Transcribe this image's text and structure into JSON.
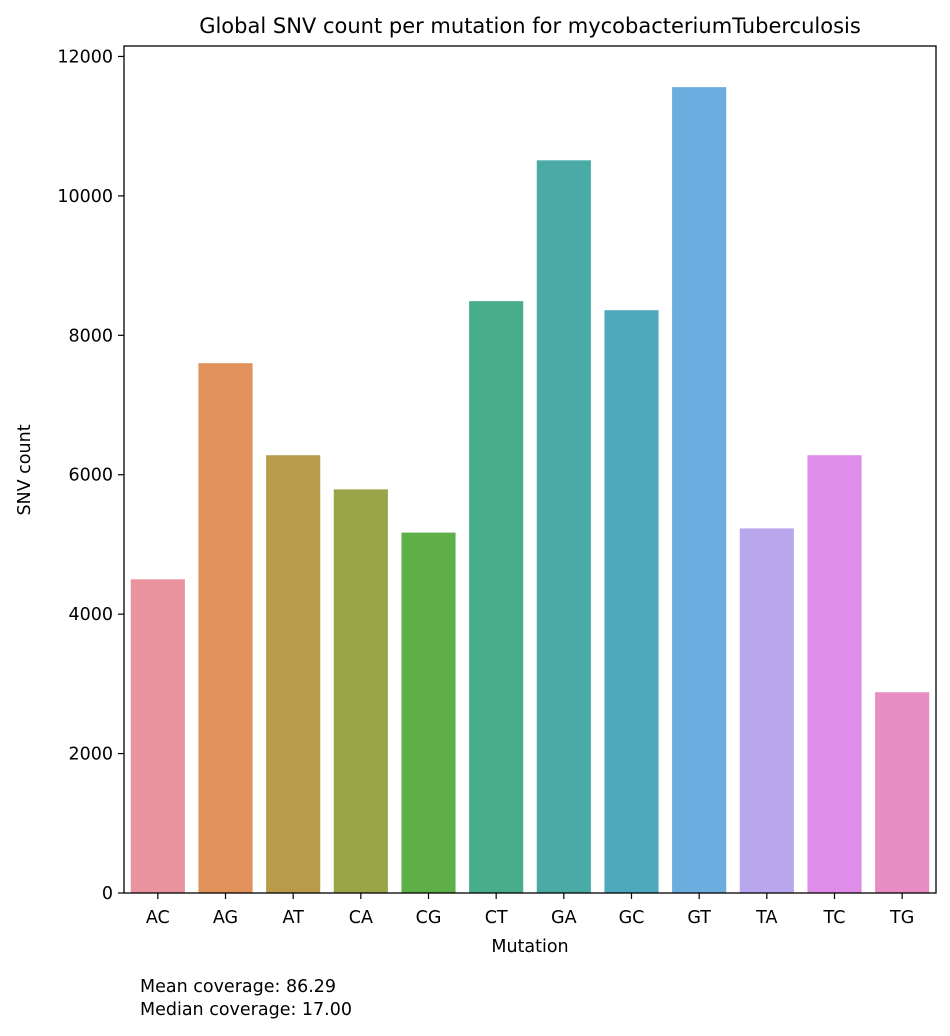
{
  "chart_data": {
    "type": "bar",
    "title": "Global SNV count per mutation for mycobacteriumTuberculosis",
    "xlabel": "Mutation",
    "ylabel": "SNV count",
    "categories": [
      "AC",
      "AG",
      "AT",
      "CA",
      "CG",
      "CT",
      "GA",
      "GC",
      "GT",
      "TA",
      "TC",
      "TG"
    ],
    "values": [
      4500,
      7600,
      6280,
      5790,
      5170,
      8490,
      10510,
      8360,
      11560,
      5230,
      6280,
      2880
    ],
    "colors": [
      "#e8939e",
      "#e0925a",
      "#b89c4a",
      "#9aa548",
      "#5faf48",
      "#47ad8a",
      "#49aaa6",
      "#4daabb",
      "#6badde",
      "#b8a7ec",
      "#df8de8",
      "#e88cc4"
    ],
    "ylim": [
      0,
      12150
    ],
    "yticks": [
      0,
      2000,
      4000,
      6000,
      8000,
      10000,
      12000
    ],
    "grid": false,
    "legend": "none"
  },
  "footer": {
    "mean_coverage": "Mean coverage: 86.29",
    "median_coverage": "Median coverage: 17.00"
  }
}
